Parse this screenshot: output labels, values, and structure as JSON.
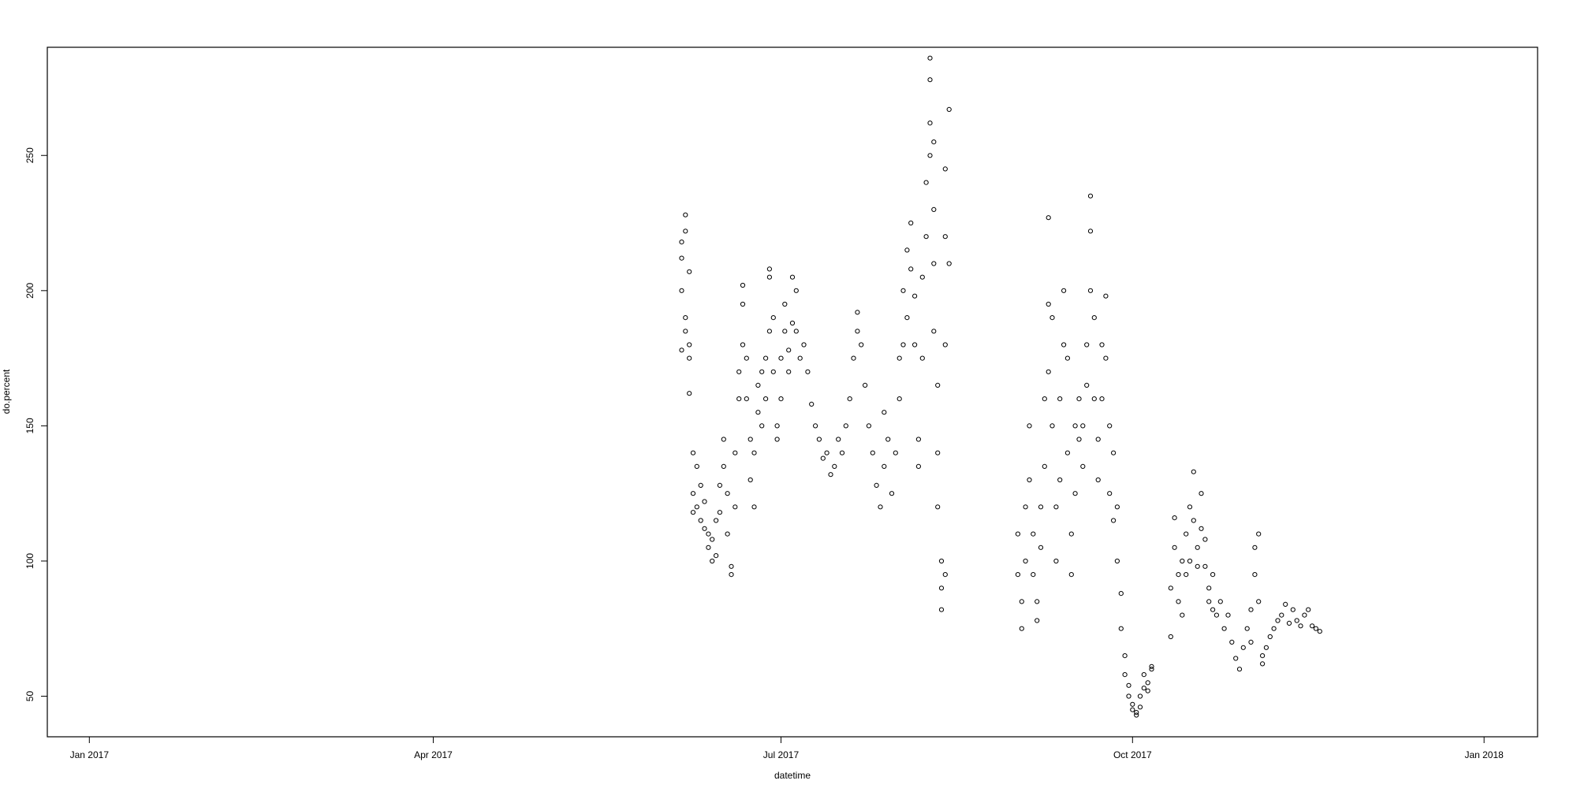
{
  "chart_data": {
    "type": "scatter",
    "title": "",
    "xlabel": "datetime",
    "ylabel": "do.percent",
    "x_ticks": [
      "Jan 2017",
      "Apr 2017",
      "Jul 2017",
      "Oct 2017",
      "Jan 2018"
    ],
    "y_ticks": [
      50,
      100,
      150,
      200,
      250
    ],
    "xlim": [
      "2016-12-21",
      "2018-01-15"
    ],
    "ylim": [
      35,
      290
    ],
    "grid": false,
    "legend": "none",
    "marker": "open-circle",
    "marker_color": "#000000",
    "series": [
      {
        "points": [
          [
            "2017-06-05",
            178
          ],
          [
            "2017-06-05",
            200
          ],
          [
            "2017-06-05",
            212
          ],
          [
            "2017-06-05",
            218
          ],
          [
            "2017-06-06",
            190
          ],
          [
            "2017-06-06",
            222
          ],
          [
            "2017-06-06",
            228
          ],
          [
            "2017-06-06",
            185
          ],
          [
            "2017-06-07",
            180
          ],
          [
            "2017-06-07",
            207
          ],
          [
            "2017-06-07",
            175
          ],
          [
            "2017-06-07",
            162
          ],
          [
            "2017-06-08",
            140
          ],
          [
            "2017-06-08",
            125
          ],
          [
            "2017-06-08",
            118
          ],
          [
            "2017-06-09",
            135
          ],
          [
            "2017-06-09",
            120
          ],
          [
            "2017-06-10",
            128
          ],
          [
            "2017-06-10",
            115
          ],
          [
            "2017-06-11",
            122
          ],
          [
            "2017-06-11",
            112
          ],
          [
            "2017-06-12",
            110
          ],
          [
            "2017-06-12",
            105
          ],
          [
            "2017-06-13",
            100
          ],
          [
            "2017-06-13",
            108
          ],
          [
            "2017-06-14",
            102
          ],
          [
            "2017-06-14",
            115
          ],
          [
            "2017-06-15",
            118
          ],
          [
            "2017-06-15",
            128
          ],
          [
            "2017-06-16",
            135
          ],
          [
            "2017-06-16",
            145
          ],
          [
            "2017-06-17",
            125
          ],
          [
            "2017-06-17",
            110
          ],
          [
            "2017-06-18",
            98
          ],
          [
            "2017-06-18",
            95
          ],
          [
            "2017-06-19",
            120
          ],
          [
            "2017-06-19",
            140
          ],
          [
            "2017-06-20",
            160
          ],
          [
            "2017-06-20",
            170
          ],
          [
            "2017-06-21",
            180
          ],
          [
            "2017-06-21",
            195
          ],
          [
            "2017-06-21",
            202
          ],
          [
            "2017-06-22",
            175
          ],
          [
            "2017-06-22",
            160
          ],
          [
            "2017-06-23",
            145
          ],
          [
            "2017-06-23",
            130
          ],
          [
            "2017-06-24",
            120
          ],
          [
            "2017-06-24",
            140
          ],
          [
            "2017-06-25",
            155
          ],
          [
            "2017-06-25",
            165
          ],
          [
            "2017-06-26",
            170
          ],
          [
            "2017-06-26",
            150
          ],
          [
            "2017-06-27",
            160
          ],
          [
            "2017-06-27",
            175
          ],
          [
            "2017-06-28",
            185
          ],
          [
            "2017-06-28",
            205
          ],
          [
            "2017-06-28",
            208
          ],
          [
            "2017-06-29",
            190
          ],
          [
            "2017-06-29",
            170
          ],
          [
            "2017-06-30",
            150
          ],
          [
            "2017-06-30",
            145
          ],
          [
            "2017-07-01",
            160
          ],
          [
            "2017-07-01",
            175
          ],
          [
            "2017-07-02",
            185
          ],
          [
            "2017-07-02",
            195
          ],
          [
            "2017-07-03",
            178
          ],
          [
            "2017-07-03",
            170
          ],
          [
            "2017-07-04",
            188
          ],
          [
            "2017-07-04",
            205
          ],
          [
            "2017-07-05",
            200
          ],
          [
            "2017-07-05",
            185
          ],
          [
            "2017-07-06",
            175
          ],
          [
            "2017-07-07",
            180
          ],
          [
            "2017-07-08",
            170
          ],
          [
            "2017-07-09",
            158
          ],
          [
            "2017-07-10",
            150
          ],
          [
            "2017-07-11",
            145
          ],
          [
            "2017-07-12",
            138
          ],
          [
            "2017-07-13",
            140
          ],
          [
            "2017-07-14",
            132
          ],
          [
            "2017-07-15",
            135
          ],
          [
            "2017-07-16",
            145
          ],
          [
            "2017-07-17",
            140
          ],
          [
            "2017-07-18",
            150
          ],
          [
            "2017-07-19",
            160
          ],
          [
            "2017-07-20",
            175
          ],
          [
            "2017-07-21",
            185
          ],
          [
            "2017-07-21",
            192
          ],
          [
            "2017-07-22",
            180
          ],
          [
            "2017-07-23",
            165
          ],
          [
            "2017-07-24",
            150
          ],
          [
            "2017-07-25",
            140
          ],
          [
            "2017-07-26",
            128
          ],
          [
            "2017-07-27",
            120
          ],
          [
            "2017-07-28",
            135
          ],
          [
            "2017-07-28",
            155
          ],
          [
            "2017-07-29",
            145
          ],
          [
            "2017-07-30",
            125
          ],
          [
            "2017-07-31",
            140
          ],
          [
            "2017-08-01",
            160
          ],
          [
            "2017-08-01",
            175
          ],
          [
            "2017-08-02",
            180
          ],
          [
            "2017-08-02",
            200
          ],
          [
            "2017-08-03",
            190
          ],
          [
            "2017-08-03",
            215
          ],
          [
            "2017-08-04",
            208
          ],
          [
            "2017-08-04",
            225
          ],
          [
            "2017-08-05",
            198
          ],
          [
            "2017-08-05",
            180
          ],
          [
            "2017-08-06",
            145
          ],
          [
            "2017-08-06",
            135
          ],
          [
            "2017-08-07",
            175
          ],
          [
            "2017-08-07",
            205
          ],
          [
            "2017-08-08",
            220
          ],
          [
            "2017-08-08",
            240
          ],
          [
            "2017-08-09",
            250
          ],
          [
            "2017-08-09",
            262
          ],
          [
            "2017-08-09",
            278
          ],
          [
            "2017-08-09",
            286
          ],
          [
            "2017-08-10",
            255
          ],
          [
            "2017-08-10",
            230
          ],
          [
            "2017-08-10",
            210
          ],
          [
            "2017-08-10",
            185
          ],
          [
            "2017-08-11",
            165
          ],
          [
            "2017-08-11",
            140
          ],
          [
            "2017-08-11",
            120
          ],
          [
            "2017-08-12",
            100
          ],
          [
            "2017-08-12",
            90
          ],
          [
            "2017-08-12",
            82
          ],
          [
            "2017-08-13",
            95
          ],
          [
            "2017-08-13",
            180
          ],
          [
            "2017-08-13",
            220
          ],
          [
            "2017-08-13",
            245
          ],
          [
            "2017-08-14",
            267
          ],
          [
            "2017-08-14",
            210
          ],
          [
            "2017-09-01",
            95
          ],
          [
            "2017-09-01",
            110
          ],
          [
            "2017-09-02",
            85
          ],
          [
            "2017-09-02",
            75
          ],
          [
            "2017-09-03",
            100
          ],
          [
            "2017-09-03",
            120
          ],
          [
            "2017-09-04",
            130
          ],
          [
            "2017-09-04",
            150
          ],
          [
            "2017-09-05",
            110
          ],
          [
            "2017-09-05",
            95
          ],
          [
            "2017-09-06",
            85
          ],
          [
            "2017-09-06",
            78
          ],
          [
            "2017-09-07",
            105
          ],
          [
            "2017-09-07",
            120
          ],
          [
            "2017-09-08",
            135
          ],
          [
            "2017-09-08",
            160
          ],
          [
            "2017-09-09",
            170
          ],
          [
            "2017-09-09",
            195
          ],
          [
            "2017-09-09",
            227
          ],
          [
            "2017-09-10",
            190
          ],
          [
            "2017-09-10",
            150
          ],
          [
            "2017-09-11",
            120
          ],
          [
            "2017-09-11",
            100
          ],
          [
            "2017-09-12",
            130
          ],
          [
            "2017-09-12",
            160
          ],
          [
            "2017-09-13",
            180
          ],
          [
            "2017-09-13",
            200
          ],
          [
            "2017-09-14",
            175
          ],
          [
            "2017-09-14",
            140
          ],
          [
            "2017-09-15",
            110
          ],
          [
            "2017-09-15",
            95
          ],
          [
            "2017-09-16",
            125
          ],
          [
            "2017-09-16",
            150
          ],
          [
            "2017-09-17",
            160
          ],
          [
            "2017-09-17",
            145
          ],
          [
            "2017-09-18",
            135
          ],
          [
            "2017-09-18",
            150
          ],
          [
            "2017-09-19",
            165
          ],
          [
            "2017-09-19",
            180
          ],
          [
            "2017-09-20",
            200
          ],
          [
            "2017-09-20",
            222
          ],
          [
            "2017-09-20",
            235
          ],
          [
            "2017-09-21",
            190
          ],
          [
            "2017-09-21",
            160
          ],
          [
            "2017-09-22",
            145
          ],
          [
            "2017-09-22",
            130
          ],
          [
            "2017-09-23",
            160
          ],
          [
            "2017-09-23",
            180
          ],
          [
            "2017-09-24",
            198
          ],
          [
            "2017-09-24",
            175
          ],
          [
            "2017-09-25",
            150
          ],
          [
            "2017-09-25",
            125
          ],
          [
            "2017-09-26",
            115
          ],
          [
            "2017-09-26",
            140
          ],
          [
            "2017-09-27",
            120
          ],
          [
            "2017-09-27",
            100
          ],
          [
            "2017-09-28",
            88
          ],
          [
            "2017-09-28",
            75
          ],
          [
            "2017-09-29",
            65
          ],
          [
            "2017-09-29",
            58
          ],
          [
            "2017-09-30",
            54
          ],
          [
            "2017-09-30",
            50
          ],
          [
            "2017-10-01",
            47
          ],
          [
            "2017-10-01",
            45
          ],
          [
            "2017-10-02",
            44
          ],
          [
            "2017-10-02",
            43
          ],
          [
            "2017-10-03",
            46
          ],
          [
            "2017-10-03",
            50
          ],
          [
            "2017-10-04",
            53
          ],
          [
            "2017-10-04",
            58
          ],
          [
            "2017-10-05",
            52
          ],
          [
            "2017-10-05",
            55
          ],
          [
            "2017-10-06",
            60
          ],
          [
            "2017-10-06",
            61
          ],
          [
            "2017-10-11",
            72
          ],
          [
            "2017-10-11",
            90
          ],
          [
            "2017-10-12",
            105
          ],
          [
            "2017-10-12",
            116
          ],
          [
            "2017-10-13",
            85
          ],
          [
            "2017-10-13",
            95
          ],
          [
            "2017-10-14",
            80
          ],
          [
            "2017-10-14",
            100
          ],
          [
            "2017-10-15",
            110
          ],
          [
            "2017-10-15",
            95
          ],
          [
            "2017-10-16",
            120
          ],
          [
            "2017-10-16",
            100
          ],
          [
            "2017-10-17",
            133
          ],
          [
            "2017-10-17",
            115
          ],
          [
            "2017-10-18",
            105
          ],
          [
            "2017-10-18",
            98
          ],
          [
            "2017-10-19",
            112
          ],
          [
            "2017-10-19",
            125
          ],
          [
            "2017-10-20",
            108
          ],
          [
            "2017-10-20",
            98
          ],
          [
            "2017-10-21",
            90
          ],
          [
            "2017-10-21",
            85
          ],
          [
            "2017-10-22",
            82
          ],
          [
            "2017-10-22",
            95
          ],
          [
            "2017-10-23",
            80
          ],
          [
            "2017-10-24",
            85
          ],
          [
            "2017-10-25",
            75
          ],
          [
            "2017-10-26",
            80
          ],
          [
            "2017-10-27",
            70
          ],
          [
            "2017-10-28",
            64
          ],
          [
            "2017-10-29",
            60
          ],
          [
            "2017-10-30",
            68
          ],
          [
            "2017-10-31",
            75
          ],
          [
            "2017-11-01",
            82
          ],
          [
            "2017-11-01",
            70
          ],
          [
            "2017-11-02",
            95
          ],
          [
            "2017-11-02",
            105
          ],
          [
            "2017-11-03",
            110
          ],
          [
            "2017-11-03",
            85
          ],
          [
            "2017-11-04",
            65
          ],
          [
            "2017-11-04",
            62
          ],
          [
            "2017-11-05",
            68
          ],
          [
            "2017-11-06",
            72
          ],
          [
            "2017-11-07",
            75
          ],
          [
            "2017-11-08",
            78
          ],
          [
            "2017-11-09",
            80
          ],
          [
            "2017-11-10",
            84
          ],
          [
            "2017-11-11",
            77
          ],
          [
            "2017-11-12",
            82
          ],
          [
            "2017-11-13",
            78
          ],
          [
            "2017-11-14",
            76
          ],
          [
            "2017-11-15",
            80
          ],
          [
            "2017-11-16",
            82
          ],
          [
            "2017-11-17",
            76
          ],
          [
            "2017-11-18",
            75
          ],
          [
            "2017-11-19",
            74
          ]
        ]
      }
    ]
  }
}
